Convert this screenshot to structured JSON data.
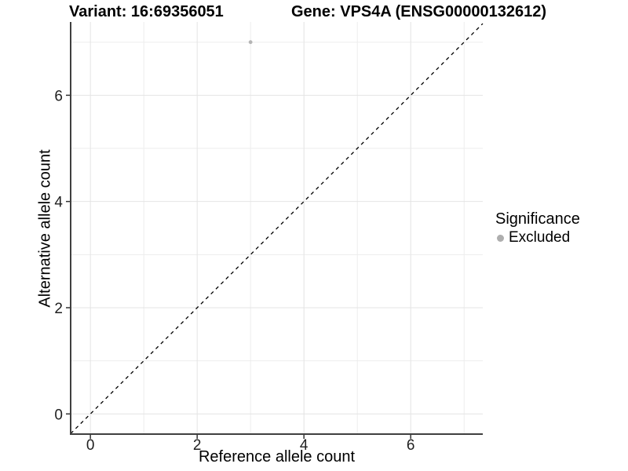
{
  "titles": {
    "variant": "Variant: 16:69356051",
    "gene": "Gene: VPS4A (ENSG00000132612)"
  },
  "legend": {
    "title": "Significance",
    "items": [
      {
        "label": "Excluded",
        "color": "#aeaeae"
      }
    ]
  },
  "chart_data": {
    "type": "scatter",
    "xlabel": "Reference allele count",
    "ylabel": "Alternative allele count",
    "xlim": [
      -0.37,
      7.35
    ],
    "ylim": [
      -0.38,
      7.38
    ],
    "x_major_ticks": [
      0,
      2,
      4,
      6
    ],
    "x_minor_ticks": [
      1,
      3,
      5,
      7
    ],
    "y_major_ticks": [
      0,
      2,
      4,
      6
    ],
    "y_minor_ticks": [
      1,
      3,
      5,
      7
    ],
    "grid": true,
    "legend_position": "right",
    "reference_line": {
      "type": "identity y=x",
      "style": "dashed",
      "color": "#000000"
    },
    "point_radius": 2.4,
    "series": [
      {
        "name": "Excluded",
        "color": "#b5b5b5",
        "points": [
          {
            "x": 3,
            "y": 7
          }
        ]
      }
    ],
    "colors": {
      "grid_major": "#e4e4e4",
      "grid_minor": "#ededed",
      "axis_line": "#3f3f3f",
      "tick": "#333333",
      "ref_line": "#000000",
      "background": "#ffffff"
    }
  }
}
